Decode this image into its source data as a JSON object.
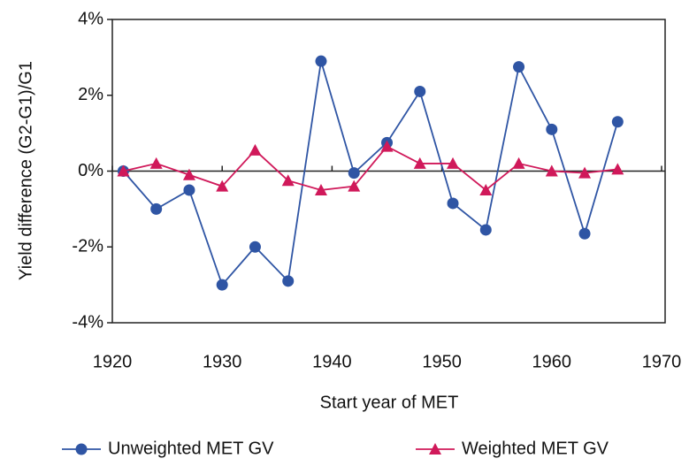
{
  "chart_data": {
    "type": "line",
    "x": [
      1921,
      1924,
      1927,
      1930,
      1933,
      1936,
      1939,
      1942,
      1945,
      1948,
      1951,
      1954,
      1957,
      1960,
      1963,
      1966
    ],
    "series": [
      {
        "name": "Unweighted MET GV",
        "color": "#2f55a4",
        "marker": "circle",
        "values": [
          0,
          -1.0,
          -0.5,
          -3.0,
          -2.0,
          -2.9,
          2.9,
          -0.05,
          0.75,
          2.1,
          -0.85,
          -1.55,
          2.75,
          1.1,
          -1.65,
          1.3
        ]
      },
      {
        "name": "Weighted MET GV",
        "color": "#d0195a",
        "marker": "triangle",
        "values": [
          0,
          0.2,
          -0.1,
          -0.4,
          0.55,
          -0.25,
          -0.5,
          -0.4,
          0.65,
          0.2,
          0.2,
          -0.5,
          0.2,
          0,
          -0.05,
          0.05
        ]
      }
    ],
    "xlim": [
      1920,
      1970
    ],
    "xticks": [
      1920,
      1930,
      1940,
      1950,
      1960,
      1970
    ],
    "ylim": [
      -4,
      4
    ],
    "yticks": [
      {
        "value": -4,
        "label": "-4%"
      },
      {
        "value": -2,
        "label": "-2%"
      },
      {
        "value": 0,
        "label": "0%"
      },
      {
        "value": 2,
        "label": "2%"
      },
      {
        "value": 4,
        "label": "4%"
      }
    ],
    "xlabel": "Start year of MET",
    "ylabel": "Yield difference (G2-G1)/G1",
    "legend": "bottom"
  }
}
